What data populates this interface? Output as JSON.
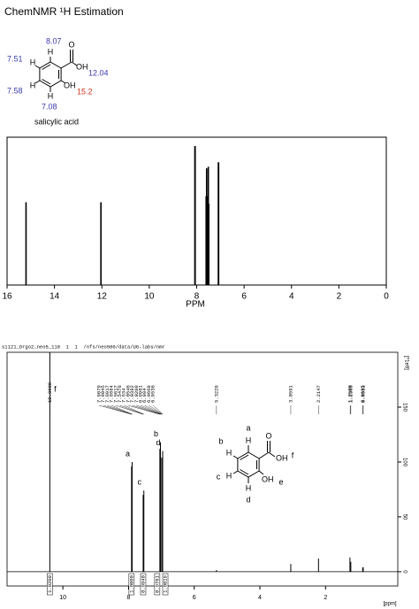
{
  "title": "ChemNMR ¹H Estimation",
  "structure": {
    "name": "salicylic acid",
    "carbonyl_o": "O",
    "acid_oh": "OH",
    "phenol_oh": "OH",
    "h": [
      "H",
      "H",
      "H",
      "H"
    ],
    "shifts": [
      8.07,
      7.51,
      7.58,
      7.08,
      12.04,
      15.2
    ]
  },
  "assigned_structure": {
    "carbonyl_o": "O",
    "acid_oh": "OH",
    "phenol_oh": "OH",
    "h": [
      "H",
      "H",
      "H",
      "H"
    ],
    "letters": [
      "a",
      "b",
      "c",
      "d",
      "e",
      "f"
    ]
  },
  "chart_data": [
    {
      "type": "stick",
      "x_label": "PPM",
      "xlim": [
        16,
        0
      ],
      "xticks": [
        16,
        14,
        12,
        10,
        8,
        6,
        4,
        2,
        0
      ],
      "ylim": [
        0,
        1
      ],
      "color": "#000000",
      "x": [
        15.2,
        12.04,
        8.075,
        8.065,
        7.6,
        7.58,
        7.56,
        7.53,
        7.51,
        7.49,
        7.085,
        7.075
      ],
      "values": [
        0.56,
        0.56,
        0.94,
        0.94,
        0.6,
        0.79,
        0.6,
        0.6,
        0.8,
        0.55,
        0.83,
        0.83
      ]
    },
    {
      "type": "stick",
      "header": "s1121_Orgo2_neo5_118  1  1  /nfs/neo500/data/UG-labs/nmr",
      "x_label": "[ppm]",
      "y_label": "[*1e9]",
      "xlim": [
        11.7,
        -0.2
      ],
      "xticks": [
        10,
        8,
        6,
        4,
        2
      ],
      "ylim": [
        -13,
        200
      ],
      "yticks": [
        0,
        50,
        100,
        150
      ],
      "color": "#000000",
      "x": [
        10.398,
        7.908,
        7.891,
        7.555,
        7.534,
        7.046,
        7.029,
        6.991,
        6.961,
        5.3229,
        3.0591,
        2.2147,
        1.2565,
        1.2305,
        0.8685,
        0.8531
      ],
      "values": [
        200,
        96,
        100,
        70,
        74,
        112,
        118,
        104,
        110,
        1.5,
        7,
        12,
        13,
        9,
        4,
        4
      ],
      "peak_labels": [
        {
          "value": 10.398,
          "label": "10.3980"
        },
        7.9079,
        7.9045,
        7.8917,
        7.8884,
        7.5617,
        7.5478,
        7.534,
        7.0546,
        7.0382,
        7.0208,
        6.9981,
        6.984,
        6.9668,
        6.9536,
        5.3229,
        3.0591,
        2.2147,
        {
          "value": 1.25,
          "label": "1.2500"
        },
        1.2305,
        0.8685,
        0.8531
      ],
      "assignments": [
        "f",
        "a",
        "c",
        "b",
        "d"
      ],
      "integrals": [
        {
          "value": 1.02,
          "label": "1.0200"
        },
        {
          "value": 1,
          "label": "1.0000"
        },
        {
          "value": 0.994,
          "label": "0.9940"
        },
        0.9761,
        1.0019
      ]
    }
  ]
}
